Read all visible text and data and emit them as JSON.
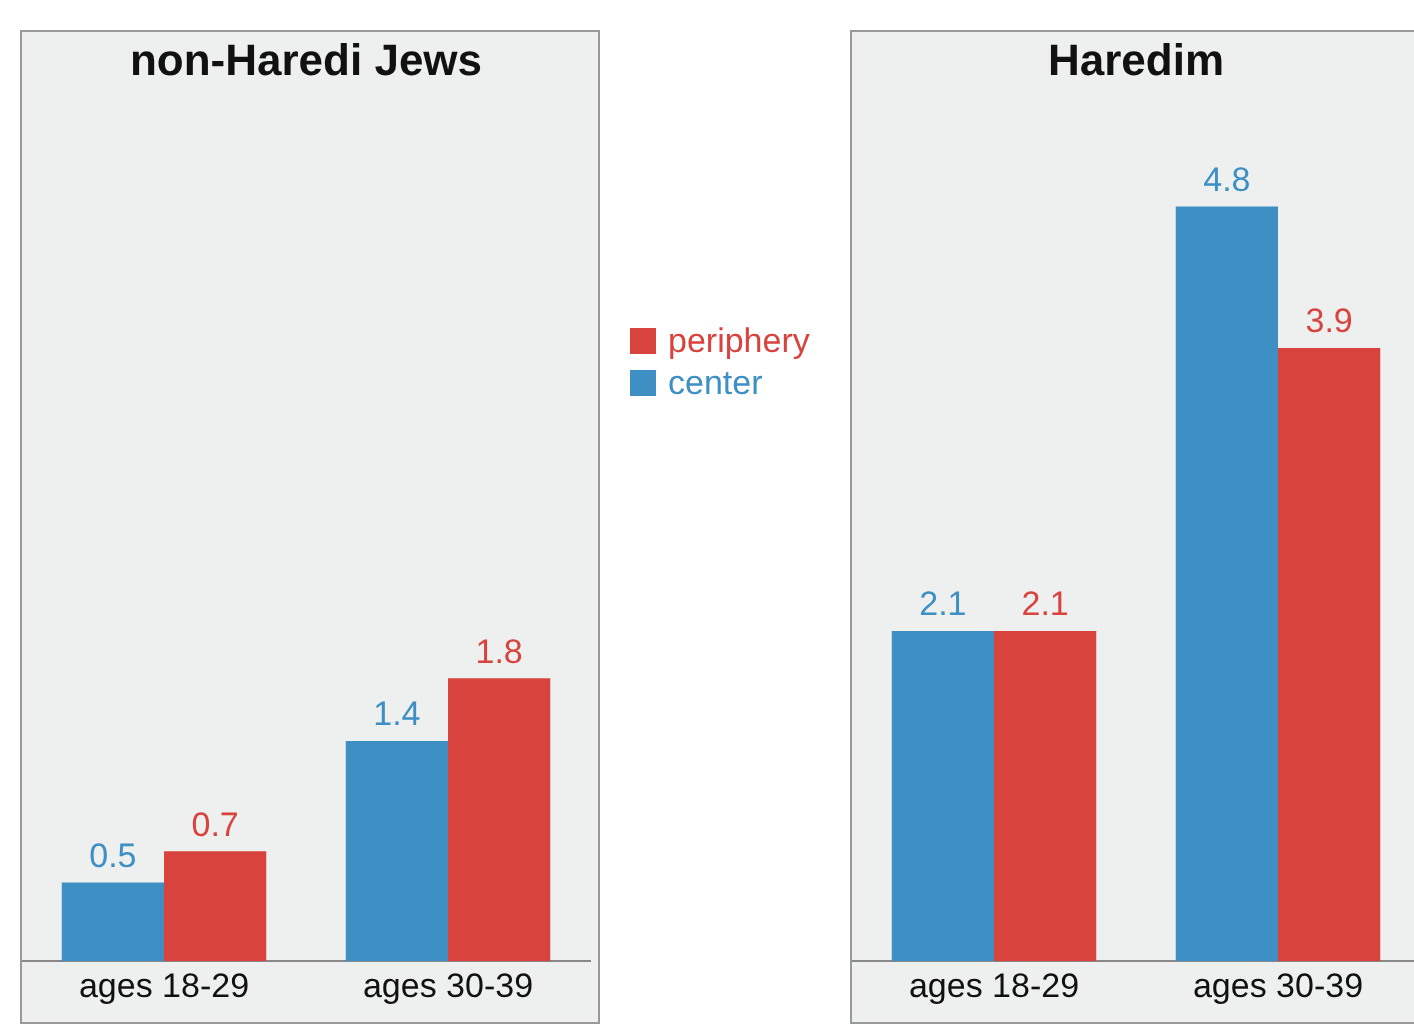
{
  "chart_data": [
    {
      "type": "bar",
      "title": "non-Haredi Jews",
      "categories": [
        "ages 18-29",
        "ages 30-39"
      ],
      "series": [
        {
          "name": "center",
          "color": "#3d8fc4",
          "values": [
            0.5,
            1.4
          ]
        },
        {
          "name": "periphery",
          "color": "#d9433e",
          "values": [
            0.7,
            1.8
          ]
        }
      ],
      "data_labels": true,
      "grid": false,
      "legend": "right"
    },
    {
      "type": "bar",
      "title": "Haredim",
      "categories": [
        "ages 18-29",
        "ages 30-39"
      ],
      "series": [
        {
          "name": "center",
          "color": "#3d8fc4",
          "values": [
            2.1,
            4.8
          ]
        },
        {
          "name": "periphery",
          "color": "#d9433e",
          "values": [
            2.1,
            3.9
          ]
        }
      ],
      "data_labels": true,
      "grid": false,
      "legend": "left"
    }
  ]
}
